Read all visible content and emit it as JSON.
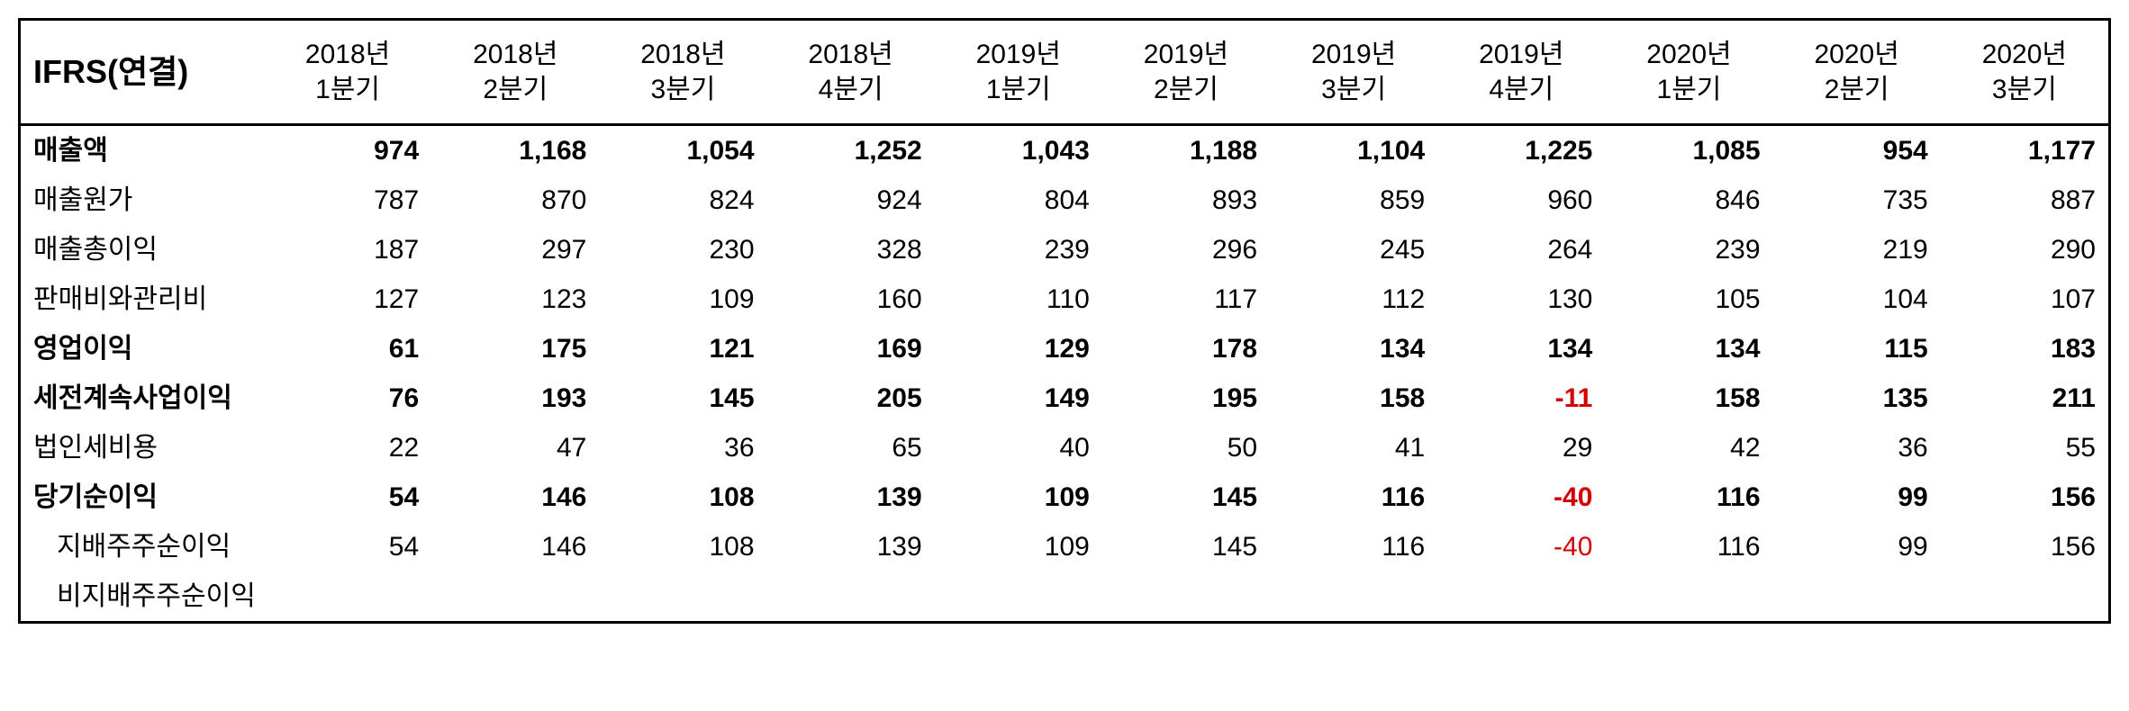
{
  "title": "IFRS(연결)",
  "negative_color": "#d40000",
  "text_color": "#000000",
  "border_color": "#000000",
  "columns": [
    {
      "year": "2018년",
      "quarter": "1분기"
    },
    {
      "year": "2018년",
      "quarter": "2분기"
    },
    {
      "year": "2018년",
      "quarter": "3분기"
    },
    {
      "year": "2018년",
      "quarter": "4분기"
    },
    {
      "year": "2019년",
      "quarter": "1분기"
    },
    {
      "year": "2019년",
      "quarter": "2분기"
    },
    {
      "year": "2019년",
      "quarter": "3분기"
    },
    {
      "year": "2019년",
      "quarter": "4분기"
    },
    {
      "year": "2020년",
      "quarter": "1분기"
    },
    {
      "year": "2020년",
      "quarter": "2분기"
    },
    {
      "year": "2020년",
      "quarter": "3분기"
    }
  ],
  "rows": [
    {
      "label": "매출액",
      "bold": true,
      "indent": 0,
      "values": [
        "974",
        "1,168",
        "1,054",
        "1,252",
        "1,043",
        "1,188",
        "1,104",
        "1,225",
        "1,085",
        "954",
        "1,177"
      ]
    },
    {
      "label": "매출원가",
      "bold": false,
      "indent": 0,
      "values": [
        "787",
        "870",
        "824",
        "924",
        "804",
        "893",
        "859",
        "960",
        "846",
        "735",
        "887"
      ]
    },
    {
      "label": "매출총이익",
      "bold": false,
      "indent": 0,
      "values": [
        "187",
        "297",
        "230",
        "328",
        "239",
        "296",
        "245",
        "264",
        "239",
        "219",
        "290"
      ]
    },
    {
      "label": "판매비와관리비",
      "bold": false,
      "indent": 0,
      "values": [
        "127",
        "123",
        "109",
        "160",
        "110",
        "117",
        "112",
        "130",
        "105",
        "104",
        "107"
      ]
    },
    {
      "label": "영업이익",
      "bold": true,
      "indent": 0,
      "values": [
        "61",
        "175",
        "121",
        "169",
        "129",
        "178",
        "134",
        "134",
        "134",
        "115",
        "183"
      ]
    },
    {
      "label": "세전계속사업이익",
      "bold": true,
      "indent": 0,
      "values": [
        "76",
        "193",
        "145",
        "205",
        "149",
        "195",
        "158",
        "-11",
        "158",
        "135",
        "211"
      ]
    },
    {
      "label": "법인세비용",
      "bold": false,
      "indent": 0,
      "values": [
        "22",
        "47",
        "36",
        "65",
        "40",
        "50",
        "41",
        "29",
        "42",
        "36",
        "55"
      ]
    },
    {
      "label": "당기순이익",
      "bold": true,
      "indent": 0,
      "values": [
        "54",
        "146",
        "108",
        "139",
        "109",
        "145",
        "116",
        "-40",
        "116",
        "99",
        "156"
      ]
    },
    {
      "label": "지배주주순이익",
      "bold": false,
      "indent": 1,
      "values": [
        "54",
        "146",
        "108",
        "139",
        "109",
        "145",
        "116",
        "-40",
        "116",
        "99",
        "156"
      ]
    },
    {
      "label": "비지배주주순이익",
      "bold": false,
      "indent": 1,
      "values": [
        "",
        "",
        "",
        "",
        "",
        "",
        "",
        "",
        "",
        "",
        ""
      ]
    }
  ]
}
